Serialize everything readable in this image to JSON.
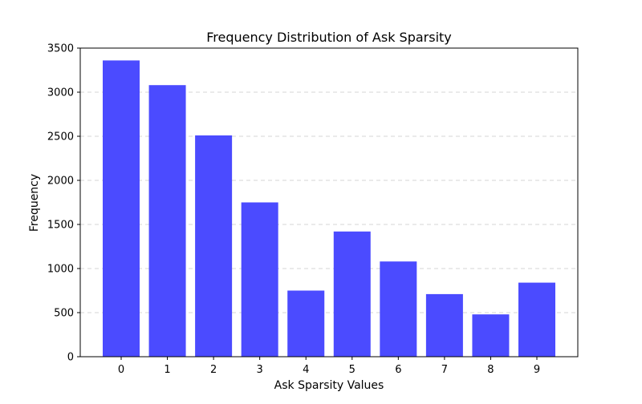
{
  "chart_data": {
    "type": "bar",
    "title": "Frequency Distribution of Ask Sparsity",
    "xlabel": "Ask Sparsity Values",
    "ylabel": "Frequency",
    "categories": [
      "0",
      "1",
      "2",
      "3",
      "4",
      "5",
      "6",
      "7",
      "8",
      "9"
    ],
    "values": [
      3360,
      3080,
      2510,
      1750,
      750,
      1420,
      1080,
      710,
      480,
      840
    ],
    "ylim": [
      0,
      3500
    ],
    "yticks": [
      0,
      500,
      1000,
      1500,
      2000,
      2500,
      3000,
      3500
    ],
    "ytick_labels": [
      "0",
      "500",
      "1000",
      "1500",
      "2000",
      "2500",
      "3000",
      "3500"
    ],
    "grid": {
      "y": true,
      "x": false,
      "style": "dashed"
    },
    "bar_color": "#4b4bff",
    "gridline_color": "#b0b0b0"
  }
}
